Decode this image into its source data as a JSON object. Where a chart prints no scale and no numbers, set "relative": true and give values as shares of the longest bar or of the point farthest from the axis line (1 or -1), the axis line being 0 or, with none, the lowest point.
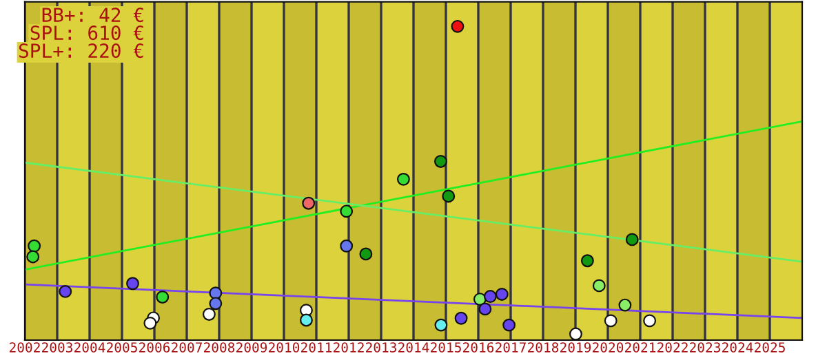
{
  "chart_data": {
    "type": "scatter",
    "relative": true,
    "xlim": [
      2002,
      2026
    ],
    "xticks": [
      2002,
      2003,
      2004,
      2005,
      2006,
      2007,
      2008,
      2009,
      2010,
      2011,
      2012,
      2013,
      2014,
      2015,
      2016,
      2017,
      2018,
      2019,
      2020,
      2021,
      2022,
      2023,
      2024,
      2025
    ],
    "grid": "x",
    "legend": false,
    "marker": "circle",
    "annotations": [
      "BB+: 42 €",
      "SPL: 610 €",
      "SPL+: 220 €"
    ],
    "bands": [
      {
        "axis": "x",
        "from": 2002,
        "to": 2003,
        "color": "#c8bc32"
      },
      {
        "axis": "x",
        "from": 2004,
        "to": 2005,
        "color": "#c8bc32"
      },
      {
        "axis": "x",
        "from": 2006,
        "to": 2007,
        "color": "#c8bc32"
      },
      {
        "axis": "x",
        "from": 2008,
        "to": 2009,
        "color": "#c8bc32"
      },
      {
        "axis": "x",
        "from": 2010,
        "to": 2011,
        "color": "#c8bc32"
      },
      {
        "axis": "x",
        "from": 2012,
        "to": 2013,
        "color": "#c8bc32"
      },
      {
        "axis": "x",
        "from": 2014,
        "to": 2015,
        "color": "#c8bc32"
      },
      {
        "axis": "x",
        "from": 2016,
        "to": 2017,
        "color": "#c8bc32"
      },
      {
        "axis": "x",
        "from": 2018,
        "to": 2019,
        "color": "#c8bc32"
      },
      {
        "axis": "x",
        "from": 2020,
        "to": 2021,
        "color": "#c8bc32"
      },
      {
        "axis": "x",
        "from": 2022,
        "to": 2023,
        "color": "#c8bc32"
      },
      {
        "axis": "x",
        "from": 2024,
        "to": 2025,
        "color": "#c8bc32"
      }
    ],
    "series": [
      {
        "type": "line",
        "marker": "none",
        "color": "#22ee22",
        "x": [
          2002,
          2026
        ],
        "values": [
          0.209,
          0.691
        ]
      },
      {
        "type": "line",
        "marker": "none",
        "color": "#66ee66",
        "x": [
          2002,
          2026
        ],
        "values": [
          0.557,
          0.235
        ]
      },
      {
        "type": "line",
        "marker": "none",
        "color": "#7744ee",
        "x": [
          2002,
          2026
        ],
        "values": [
          0.161,
          0.052
        ]
      },
      {
        "color": "#33dd33",
        "x": [
          2002.29,
          2002.25,
          2006.25,
          2011.93,
          2013.69
        ],
        "values": [
          0.286,
          0.251,
          0.12,
          0.399,
          0.503
        ]
      },
      {
        "color": "#119911",
        "x": [
          2014.84,
          2015.08,
          2012.53,
          2019.37,
          2020.75
        ],
        "values": [
          0.561,
          0.448,
          0.26,
          0.238,
          0.307
        ]
      },
      {
        "color": "#88ee66",
        "x": [
          2016.05,
          2019.73,
          2020.53
        ],
        "values": [
          0.113,
          0.157,
          0.094
        ]
      },
      {
        "color": "#6644ee",
        "x": [
          2003.25,
          2005.33,
          2016.37,
          2016.73,
          2016.21,
          2016.95,
          2015.47
        ],
        "values": [
          0.138,
          0.164,
          0.122,
          0.129,
          0.081,
          0.029,
          0.051
        ]
      },
      {
        "color": "#6677ee",
        "x": [
          2007.89,
          2007.89,
          2011.93
        ],
        "values": [
          0.133,
          0.099,
          0.286
        ]
      },
      {
        "color": "#ffffff",
        "x": [
          2005.97,
          2005.87,
          2007.69,
          2010.69,
          2019.01,
          2020.09,
          2021.29
        ],
        "values": [
          0.052,
          0.035,
          0.064,
          0.077,
          0,
          0.043,
          0.043
        ]
      },
      {
        "color": "#66eeee",
        "x": [
          2010.69,
          2014.85
        ],
        "values": [
          0.045,
          0.029
        ]
      },
      {
        "color": "#ee6666",
        "x": [
          2010.76
        ],
        "values": [
          0.425
        ]
      },
      {
        "color": "#ee1111",
        "x": [
          2015.36
        ],
        "values": [
          1.0
        ]
      }
    ]
  }
}
